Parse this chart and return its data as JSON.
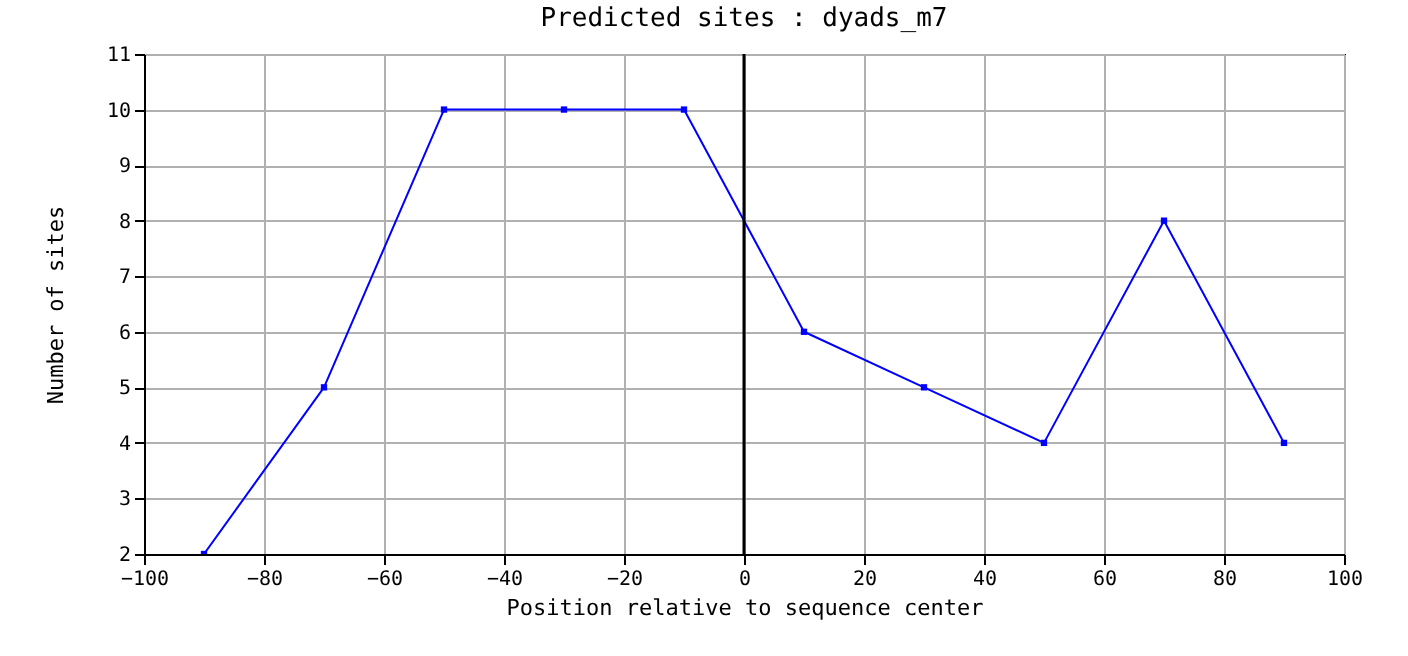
{
  "chart_data": {
    "type": "line",
    "title": "Predicted sites : dyads_m7",
    "xlabel": "Position relative to sequence center",
    "ylabel": "Number of sites",
    "x": [
      -90,
      -70,
      -50,
      -30,
      -10,
      10,
      30,
      50,
      70,
      90
    ],
    "series": [
      {
        "color": "#0000ff",
        "values": [
          2,
          5,
          10,
          10,
          10,
          6,
          5,
          4,
          8,
          4
        ]
      }
    ],
    "xlim": [
      -100,
      100
    ],
    "xticks": [
      -100,
      -80,
      -60,
      -40,
      -20,
      0,
      20,
      40,
      60,
      80,
      100
    ],
    "ylim": [
      2,
      11
    ],
    "yticks": [
      2,
      3,
      4,
      5,
      6,
      7,
      8,
      9,
      10,
      11
    ],
    "grid": true,
    "marker": "square",
    "line_style": "solid",
    "ref_lines": [
      {
        "axis": "x",
        "value": 0,
        "color": "#000000"
      }
    ]
  }
}
